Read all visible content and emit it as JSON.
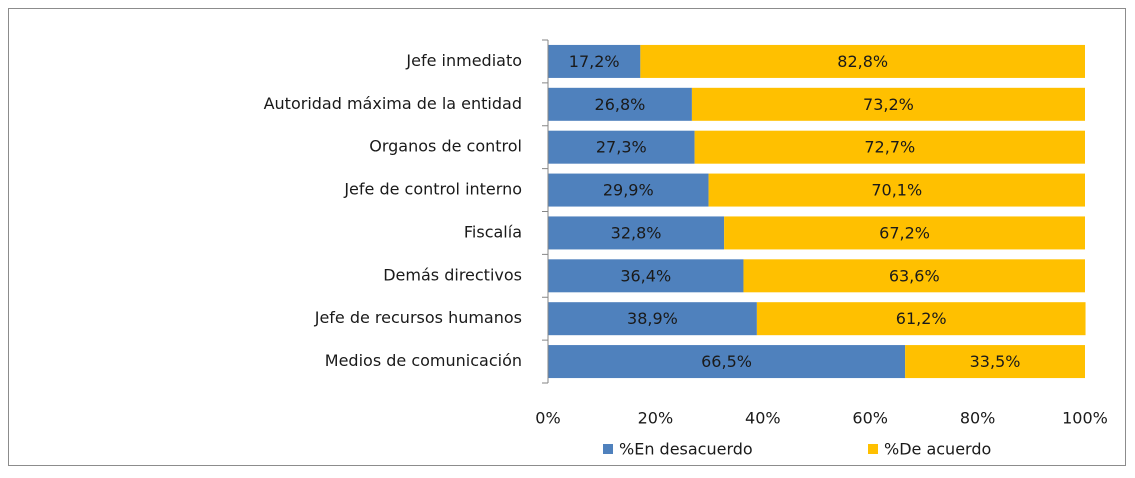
{
  "chart_data": {
    "type": "bar",
    "orientation": "horizontal",
    "stacked": true,
    "categories": [
      "Jefe inmediato",
      "Autoridad máxima  de la entidad",
      "Organos de control",
      "Jefe de control interno",
      "Fiscalía",
      "Demás directivos",
      "Jefe de recursos humanos",
      "Medios de comunicación"
    ],
    "series": [
      {
        "name": "%En desacuerdo",
        "color": "#4f81bd",
        "values": [
          17.2,
          26.8,
          27.3,
          29.9,
          32.8,
          36.4,
          38.9,
          66.5
        ],
        "value_labels": [
          "17,2%",
          "26,8%",
          "27,3%",
          "29,9%",
          "32,8%",
          "36,4%",
          "38,9%",
          "66,5%"
        ]
      },
      {
        "name": "%De acuerdo",
        "color": "#ffc000",
        "values": [
          82.8,
          73.2,
          72.7,
          70.1,
          67.2,
          63.6,
          61.2,
          33.5
        ],
        "value_labels": [
          "82,8%",
          "73,2%",
          "72,7%",
          "70,1%",
          "67,2%",
          "63,6%",
          "61,2%",
          "33,5%"
        ]
      }
    ],
    "xlim": [
      0,
      100
    ],
    "xticks": [
      {
        "value": 0,
        "label": "0%"
      },
      {
        "value": 20,
        "label": "20%"
      },
      {
        "value": 40,
        "label": "40%"
      },
      {
        "value": 60,
        "label": "60%"
      },
      {
        "value": 80,
        "label": "80%"
      },
      {
        "value": 100,
        "label": "100%"
      }
    ],
    "legend": "bottom"
  }
}
